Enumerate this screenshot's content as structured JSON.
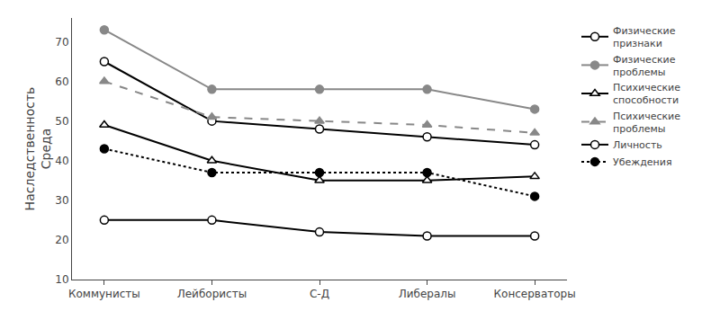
{
  "chart_data": {
    "type": "line",
    "ylabel": "Наследственность\nСреда",
    "categories": [
      "Коммунисты",
      "Лейбористы",
      "С-Д",
      "Либералы",
      "Консерваторы"
    ],
    "series": [
      {
        "name": "Физические\nпризнаки",
        "color": "#000000",
        "line_style": "solid",
        "marker": "circle-open",
        "values": [
          65,
          50,
          48,
          46,
          44
        ]
      },
      {
        "name": "Физические\nпроблемы",
        "color": "#888888",
        "line_style": "solid",
        "marker": "circle",
        "values": [
          73,
          58,
          58,
          58,
          53
        ]
      },
      {
        "name": "Психические\nспособности",
        "color": "#000000",
        "line_style": "solid",
        "marker": "triangle-up-open",
        "values": [
          49,
          40,
          35,
          35,
          36
        ]
      },
      {
        "name": "Психические\nпроблемы",
        "color": "#888888",
        "line_style": "dash",
        "marker": "triangle-up",
        "values": [
          60,
          51,
          50,
          49,
          47
        ]
      },
      {
        "name": "Личность",
        "color": "#000000",
        "line_style": "solid",
        "marker": "circle-open",
        "values": [
          25,
          25,
          22,
          21,
          21
        ]
      },
      {
        "name": "Убеждения",
        "color": "#000000",
        "line_style": "dot",
        "marker": "circle",
        "values": [
          43,
          37,
          37,
          37,
          31
        ]
      }
    ],
    "ylim": [
      10,
      76
    ],
    "yticks": [
      10,
      20,
      30,
      40,
      50,
      60,
      70
    ],
    "grid": false,
    "legend": "upper right"
  }
}
